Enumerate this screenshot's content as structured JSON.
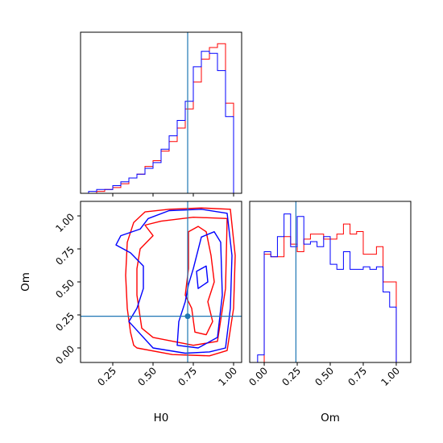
{
  "chart_data": [
    {
      "type": "histogram",
      "panel": "H0 marginal",
      "xlim": [
        0.05,
        1.05
      ],
      "truth": 0.715,
      "bin_edges": [
        0.05,
        0.1,
        0.15,
        0.2,
        0.25,
        0.3,
        0.35,
        0.4,
        0.45,
        0.5,
        0.55,
        0.6,
        0.65,
        0.7,
        0.75,
        0.8,
        0.85,
        0.9,
        0.95,
        1.0,
        1.05
      ],
      "series": [
        {
          "name": "",
          "color": "#ff0000",
          "values": [
            0,
            0,
            1,
            2,
            3,
            5,
            8,
            10,
            14,
            17,
            22,
            27,
            34,
            44,
            58,
            70,
            76,
            78,
            47,
            0
          ]
        },
        {
          "name": "",
          "color": "#0000ff",
          "values": [
            0,
            1,
            2,
            2,
            4,
            6,
            8,
            10,
            13,
            16,
            23,
            30,
            38,
            48,
            66,
            74,
            73,
            64,
            40,
            0
          ]
        }
      ],
      "ymax": 84
    },
    {
      "type": "contour",
      "panel": "H0 vs Om",
      "xlabel": "H0",
      "ylabel": "Om",
      "xlim": [
        0.05,
        1.05
      ],
      "ylim": [
        -0.11,
        1.11
      ],
      "xticks": [
        "0.25",
        "0.50",
        "0.75",
        "1.00"
      ],
      "yticks": [
        "0.00",
        "0.25",
        "0.50",
        "0.75",
        "1.00"
      ],
      "truth": [
        0.715,
        0.24
      ],
      "series": [
        {
          "name": "",
          "color": "#ff0000",
          "contours": [
            [
              [
                0.4,
                0.0
              ],
              [
                0.62,
                -0.05
              ],
              [
                0.85,
                -0.06
              ],
              [
                0.96,
                -0.02
              ],
              [
                1.0,
                0.3
              ],
              [
                1.01,
                0.7
              ],
              [
                0.98,
                1.05
              ],
              [
                0.8,
                1.06
              ],
              [
                0.6,
                1.05
              ],
              [
                0.45,
                1.03
              ],
              [
                0.38,
                0.95
              ],
              [
                0.34,
                0.8
              ],
              [
                0.33,
                0.55
              ],
              [
                0.34,
                0.3
              ],
              [
                0.36,
                0.12
              ],
              [
                0.38,
                0.02
              ],
              [
                0.4,
                0.0
              ]
            ],
            [
              [
                0.5,
                0.08
              ],
              [
                0.75,
                0.02
              ],
              [
                0.9,
                0.05
              ],
              [
                0.95,
                0.45
              ],
              [
                0.96,
                0.98
              ],
              [
                0.75,
                0.99
              ],
              [
                0.55,
                0.96
              ],
              [
                0.45,
                0.93
              ],
              [
                0.5,
                0.85
              ],
              [
                0.42,
                0.75
              ],
              [
                0.4,
                0.6
              ],
              [
                0.4,
                0.4
              ],
              [
                0.43,
                0.15
              ],
              [
                0.5,
                0.08
              ]
            ],
            [
              [
                0.76,
                0.12
              ],
              [
                0.83,
                0.1
              ],
              [
                0.87,
                0.2
              ],
              [
                0.84,
                0.35
              ],
              [
                0.88,
                0.5
              ],
              [
                0.86,
                0.7
              ],
              [
                0.83,
                0.88
              ],
              [
                0.78,
                0.92
              ],
              [
                0.72,
                0.88
              ],
              [
                0.72,
                0.6
              ],
              [
                0.7,
                0.4
              ],
              [
                0.74,
                0.3
              ],
              [
                0.76,
                0.12
              ]
            ]
          ]
        },
        {
          "name": "",
          "color": "#0000ff",
          "contours": [
            [
              [
                0.35,
                0.2
              ],
              [
                0.5,
                0.0
              ],
              [
                0.7,
                -0.04
              ],
              [
                0.85,
                -0.03
              ],
              [
                0.95,
                0.0
              ],
              [
                0.98,
                0.3
              ],
              [
                0.99,
                0.7
              ],
              [
                0.96,
                1.02
              ],
              [
                0.8,
                1.05
              ],
              [
                0.6,
                1.04
              ],
              [
                0.47,
                0.98
              ],
              [
                0.42,
                0.9
              ],
              [
                0.3,
                0.85
              ],
              [
                0.27,
                0.78
              ],
              [
                0.36,
                0.72
              ],
              [
                0.44,
                0.62
              ],
              [
                0.44,
                0.45
              ],
              [
                0.4,
                0.3
              ],
              [
                0.35,
                0.2
              ]
            ],
            [
              [
                0.65,
                0.02
              ],
              [
                0.78,
                0.0
              ],
              [
                0.9,
                0.08
              ],
              [
                0.93,
                0.4
              ],
              [
                0.92,
                0.8
              ],
              [
                0.88,
                0.88
              ],
              [
                0.8,
                0.84
              ],
              [
                0.75,
                0.6
              ],
              [
                0.72,
                0.48
              ],
              [
                0.7,
                0.35
              ],
              [
                0.66,
                0.2
              ],
              [
                0.65,
                0.02
              ]
            ],
            [
              [
                0.78,
                0.45
              ],
              [
                0.84,
                0.5
              ],
              [
                0.83,
                0.62
              ],
              [
                0.77,
                0.58
              ],
              [
                0.78,
                0.45
              ]
            ]
          ]
        }
      ]
    },
    {
      "type": "histogram",
      "panel": "Om marginal",
      "xlabel": "Om",
      "xlim": [
        -0.11,
        1.11
      ],
      "xticks": [
        "0.00",
        "0.25",
        "0.50",
        "0.75",
        "1.00"
      ],
      "truth": 0.24,
      "bin_edges": [
        -0.1,
        -0.05,
        0.0,
        0.05,
        0.1,
        0.15,
        0.2,
        0.25,
        0.3,
        0.35,
        0.4,
        0.45,
        0.5,
        0.55,
        0.6,
        0.65,
        0.7,
        0.75,
        0.8,
        0.85,
        0.9,
        0.95,
        1.0,
        1.05,
        1.1
      ],
      "series": [
        {
          "name": "",
          "color": "#ff0000",
          "values": [
            0,
            0,
            43,
            42,
            42,
            50,
            47,
            44,
            49,
            51,
            51,
            49,
            49,
            51,
            55,
            51,
            52,
            43,
            43,
            46,
            32,
            32,
            0,
            0
          ]
        },
        {
          "name": "",
          "color": "#0000ff",
          "values": [
            0,
            3,
            44,
            42,
            50,
            59,
            46,
            58,
            47,
            48,
            46,
            50,
            39,
            37,
            44,
            37,
            37,
            38,
            37,
            38,
            28,
            22,
            0,
            0
          ]
        }
      ],
      "ymax": 64
    }
  ]
}
